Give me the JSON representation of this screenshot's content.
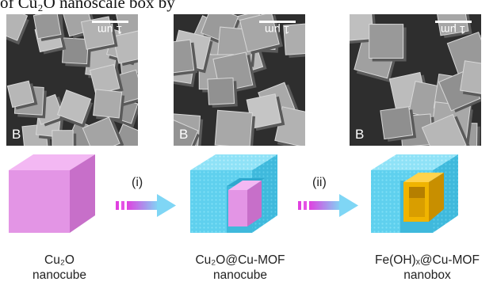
{
  "caption_fragment": "of Cu₂O nanoscale box by",
  "sem_panels": [
    {
      "letter": "B",
      "scale_label": "1 μm"
    },
    {
      "letter": "B",
      "scale_label": "1 μm"
    },
    {
      "letter": "B",
      "scale_label": "1 μm"
    }
  ],
  "steps": {
    "first": "(i)",
    "second": "(ii)"
  },
  "stages": [
    {
      "name": "Cu₂O",
      "sub": "nanocube",
      "color": "#e08ce0"
    },
    {
      "name": "Cu₂O@Cu-MOF",
      "sub": "nanocube",
      "color": "#5fd0ee"
    },
    {
      "name": "Fe(OH)ₓ@Cu-MOF",
      "sub": "nanobox",
      "color": "#f0b400"
    }
  ],
  "colors": {
    "arrow_start": "#e040e0",
    "arrow_end": "#7fd6f5",
    "mof": "#5fd0ee",
    "core": "#e08ce0",
    "gold": "#f0b400"
  }
}
